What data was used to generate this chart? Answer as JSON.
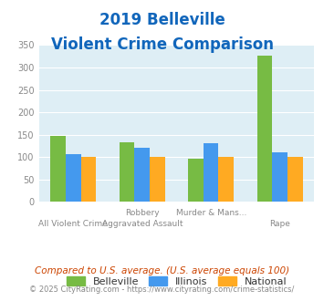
{
  "title_line1": "2019 Belleville",
  "title_line2": "Violent Crime Comparison",
  "cat_labels_line1": [
    "",
    "Robbery",
    "Murder & Mans...",
    ""
  ],
  "cat_labels_line2": [
    "All Violent Crime",
    "Aggravated Assault",
    "",
    "Rape"
  ],
  "belleville": [
    147,
    133,
    97,
    327
  ],
  "illinois": [
    107,
    120,
    131,
    111
  ],
  "national": [
    100,
    100,
    100,
    100
  ],
  "bar_colors": [
    "#77bb44",
    "#4499ee",
    "#ffaa22"
  ],
  "legend_labels": [
    "Belleville",
    "Illinois",
    "National"
  ],
  "ylim": [
    0,
    350
  ],
  "yticks": [
    0,
    50,
    100,
    150,
    200,
    250,
    300,
    350
  ],
  "bg_color": "#deeef5",
  "title_color": "#1166bb",
  "axis_label_color": "#888888",
  "footnote1": "Compared to U.S. average. (U.S. average equals 100)",
  "footnote2": "© 2025 CityRating.com - https://www.cityrating.com/crime-statistics/",
  "footnote1_color": "#cc4400",
  "footnote2_color": "#888888"
}
